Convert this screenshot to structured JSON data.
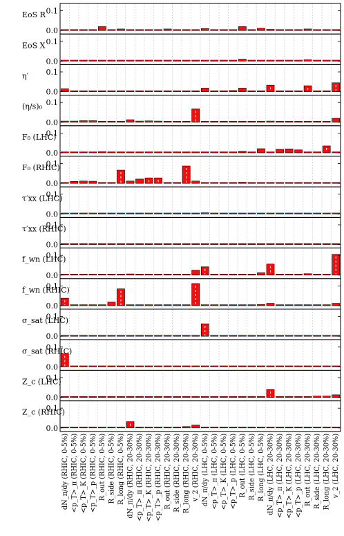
{
  "chart_data": {
    "type": "bar",
    "grid": true,
    "ylim": [
      0,
      0.13
    ],
    "yticks": [
      "0.0",
      "0.1"
    ],
    "bar_color": "#ee1111",
    "categories": [
      "dN_π/dy (RHIC, 0-5%)",
      "<p_T>_π (RHIC, 0-5%)",
      "<p_T>_K (RHIC, 0-5%)",
      "<p_T>_p (RHIC, 0-5%)",
      "R_out (RHIC, 0-5%)",
      "R_side (RHIC, 0-5%)",
      "R_long (RHIC, 0-5%)",
      "dN_π/dy (RHIC, 20-30%)",
      "<p_T>_π (RHIC, 20-30%)",
      "<p_T>_K (RHIC, 20-30%)",
      "<p_T>_p (RHIC, 20-30%)",
      "R_out (RHIC, 20-30%)",
      "R_side (RHIC, 20-30%)",
      "R_long (RHIC, 20-30%)",
      "v_2 (RHIC, 20-30%)",
      "dN_π/dy (LHC, 0-5%)",
      "<p_T>_π (LHC, 0-5%)",
      "<p_T>_K (LHC, 0-5%)",
      "<p_T>_p (LHC, 0-5%)",
      "R_out (LHC, 0-5%)",
      "R_side (LHC, 0-5%)",
      "R_long (LHC, 0-5%)",
      "dN_π/dy (LHC, 20-30%)",
      "<p_T>_π (LHC, 20-30%)",
      "<p_T>_K (LHC, 20-30%)",
      "<p_T>_p (LHC, 20-30%)",
      "R_out (LHC, 20-30%)",
      "R_side (LHC, 20-30%)",
      "R_long (LHC, 20-30%)",
      "v_2 (LHC, 20-30%)"
    ],
    "panels": [
      {
        "label": "EoS R",
        "values": [
          0.001,
          0.001,
          0.001,
          0.001,
          0.02,
          0.001,
          0.008,
          0.001,
          0.001,
          0.001,
          0.001,
          0.008,
          0.002,
          0.001,
          0.001,
          0.01,
          0.002,
          0.002,
          0.002,
          0.02,
          0.001,
          0.012,
          0.006,
          0.002,
          0.001,
          0.002,
          0.008,
          0.002,
          0.001,
          0.001
        ]
      },
      {
        "label": "EoS X",
        "values": [
          0.001,
          0.001,
          0.001,
          0.001,
          0.001,
          0.001,
          0.001,
          0.001,
          0.001,
          0.001,
          0.001,
          0.001,
          0.001,
          0.001,
          0.001,
          0.003,
          0.001,
          0.001,
          0.001,
          0.01,
          0.001,
          0.001,
          0.001,
          0.001,
          0.001,
          0.001,
          0.007,
          0.001,
          0.001,
          0.001
        ]
      },
      {
        "label": "η′",
        "values": [
          0.015,
          0.001,
          0.001,
          0.001,
          0.001,
          0.001,
          0.001,
          0.001,
          0.001,
          0.001,
          0.001,
          0.001,
          0.001,
          0.001,
          0.001,
          0.018,
          0.005,
          0.005,
          0.006,
          0.018,
          0.002,
          0.004,
          0.033,
          0.001,
          0.001,
          0.001,
          0.03,
          0.004,
          0.001,
          0.045
        ]
      },
      {
        "label": "(η/s)₀",
        "values": [
          0.006,
          0.006,
          0.008,
          0.008,
          0.002,
          0.001,
          0.002,
          0.013,
          0.006,
          0.007,
          0.006,
          0.003,
          0.002,
          0.001,
          0.068,
          0.001,
          0.001,
          0.001,
          0.001,
          0.004,
          0.001,
          0.002,
          0.006,
          0.001,
          0.001,
          0.001,
          0.002,
          0.001,
          0.001,
          0.02
        ]
      },
      {
        "label": "F₀ (LHC)",
        "values": [
          0.001,
          0.001,
          0.001,
          0.001,
          0.006,
          0.001,
          0.001,
          0.001,
          0.001,
          0.001,
          0.001,
          0.001,
          0.001,
          0.001,
          0.001,
          0.001,
          0.005,
          0.005,
          0.003,
          0.008,
          0.002,
          0.021,
          0.002,
          0.018,
          0.02,
          0.015,
          0.004,
          0.005,
          0.035,
          0.004
        ]
      },
      {
        "label": "F₀ (RHIC)",
        "values": [
          0.001,
          0.01,
          0.012,
          0.011,
          0.001,
          0.001,
          0.067,
          0.012,
          0.022,
          0.028,
          0.028,
          0.004,
          0.005,
          0.088,
          0.012,
          0.002,
          0.002,
          0.002,
          0.003,
          0.006,
          0.002,
          0.001,
          0.001,
          0.001,
          0.001,
          0.001,
          0.001,
          0.001,
          0.001,
          0.001
        ]
      },
      {
        "label": "τ′xx (LHC)",
        "values": [
          0.001,
          0.001,
          0.001,
          0.001,
          0.001,
          0.001,
          0.001,
          0.001,
          0.001,
          0.001,
          0.001,
          0.001,
          0.001,
          0.001,
          0.001,
          0.006,
          0.001,
          0.001,
          0.001,
          0.001,
          0.001,
          0.001,
          0.001,
          0.001,
          0.001,
          0.001,
          0.001,
          0.001,
          0.001,
          0.001
        ]
      },
      {
        "label": "τ′xx (RHIC)",
        "values": [
          0.001,
          0.001,
          0.001,
          0.001,
          0.001,
          0.001,
          0.001,
          0.002,
          0.001,
          0.001,
          0.001,
          0.001,
          0.001,
          0.001,
          0.005,
          0.001,
          0.001,
          0.001,
          0.001,
          0.001,
          0.001,
          0.001,
          0.001,
          0.001,
          0.001,
          0.001,
          0.001,
          0.001,
          0.001,
          0.001
        ]
      },
      {
        "label": "f_wn (LHC)",
        "values": [
          0.001,
          0.001,
          0.001,
          0.001,
          0.001,
          0.001,
          0.001,
          0.006,
          0.001,
          0.001,
          0.001,
          0.001,
          0.001,
          0.001,
          0.025,
          0.042,
          0.001,
          0.001,
          0.001,
          0.002,
          0.002,
          0.012,
          0.056,
          0.001,
          0.001,
          0.001,
          0.007,
          0.005,
          0.001,
          0.105
        ]
      },
      {
        "label": "f_wn (RHIC)",
        "values": [
          0.038,
          0.001,
          0.001,
          0.001,
          0.001,
          0.018,
          0.085,
          0.001,
          0.001,
          0.001,
          0.001,
          0.005,
          0.005,
          0.001,
          0.112,
          0.001,
          0.001,
          0.001,
          0.001,
          0.001,
          0.002,
          0.006,
          0.012,
          0.001,
          0.001,
          0.001,
          0.001,
          0.001,
          0.001,
          0.012
        ]
      },
      {
        "label": "σ_sat (LHC)",
        "values": [
          0.001,
          0.001,
          0.001,
          0.001,
          0.001,
          0.001,
          0.001,
          0.001,
          0.001,
          0.001,
          0.001,
          0.001,
          0.001,
          0.001,
          0.001,
          0.063,
          0.001,
          0.001,
          0.001,
          0.001,
          0.001,
          0.001,
          0.001,
          0.001,
          0.001,
          0.001,
          0.001,
          0.001,
          0.004,
          0.001
        ]
      },
      {
        "label": "σ_sat (RHIC)",
        "values": [
          0.066,
          0.001,
          0.001,
          0.001,
          0.002,
          0.001,
          0.002,
          0.001,
          0.001,
          0.001,
          0.001,
          0.005,
          0.001,
          0.001,
          0.001,
          0.001,
          0.001,
          0.001,
          0.001,
          0.001,
          0.001,
          0.001,
          0.001,
          0.001,
          0.001,
          0.001,
          0.001,
          0.001,
          0.001,
          0.001
        ]
      },
      {
        "label": "Z_c (LHC)",
        "values": [
          0.001,
          0.001,
          0.001,
          0.001,
          0.002,
          0.001,
          0.001,
          0.001,
          0.001,
          0.001,
          0.001,
          0.001,
          0.001,
          0.001,
          0.001,
          0.001,
          0.001,
          0.002,
          0.003,
          0.002,
          0.002,
          0.001,
          0.04,
          0.002,
          0.003,
          0.002,
          0.001,
          0.007,
          0.007,
          0.013
        ]
      },
      {
        "label": "Z_c (RHIC)",
        "values": [
          0.001,
          0.001,
          0.001,
          0.001,
          0.001,
          0.001,
          0.001,
          0.032,
          0.001,
          0.001,
          0.001,
          0.001,
          0.004,
          0.007,
          0.015,
          0.001,
          0.001,
          0.001,
          0.001,
          0.001,
          0.001,
          0.001,
          0.001,
          0.001,
          0.001,
          0.001,
          0.001,
          0.001,
          0.001,
          0.001
        ]
      }
    ]
  }
}
